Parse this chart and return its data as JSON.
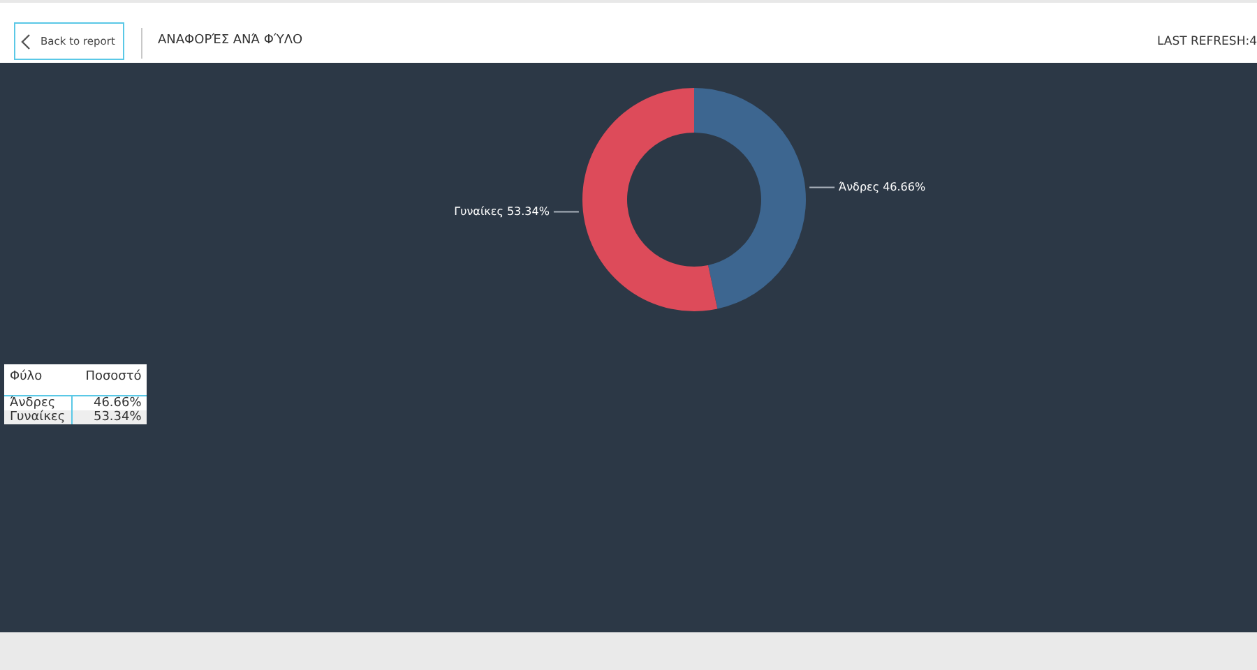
{
  "chart_data": [
    {
      "type": "donut",
      "title": "ΑΝΑΦΟΡΈΣ ΑΝΆ ΦΎΛΟ",
      "categories": [
        "Άνδρες",
        "Γυναίκες"
      ],
      "values": [
        46.66,
        53.34
      ],
      "colors": [
        "#3d6690",
        "#dd4b5a"
      ],
      "value_labels": [
        "46.66%",
        "53.34%"
      ],
      "legend": false,
      "annotations": [
        "Back to report",
        "LAST REFRESH:4"
      ]
    },
    {
      "type": "other",
      "annotations": [
        "Φύλο",
        "Ποσοστό",
        "Άνδρες",
        "46.66%",
        "Γυναίκες",
        "53.34%"
      ]
    }
  ]
}
